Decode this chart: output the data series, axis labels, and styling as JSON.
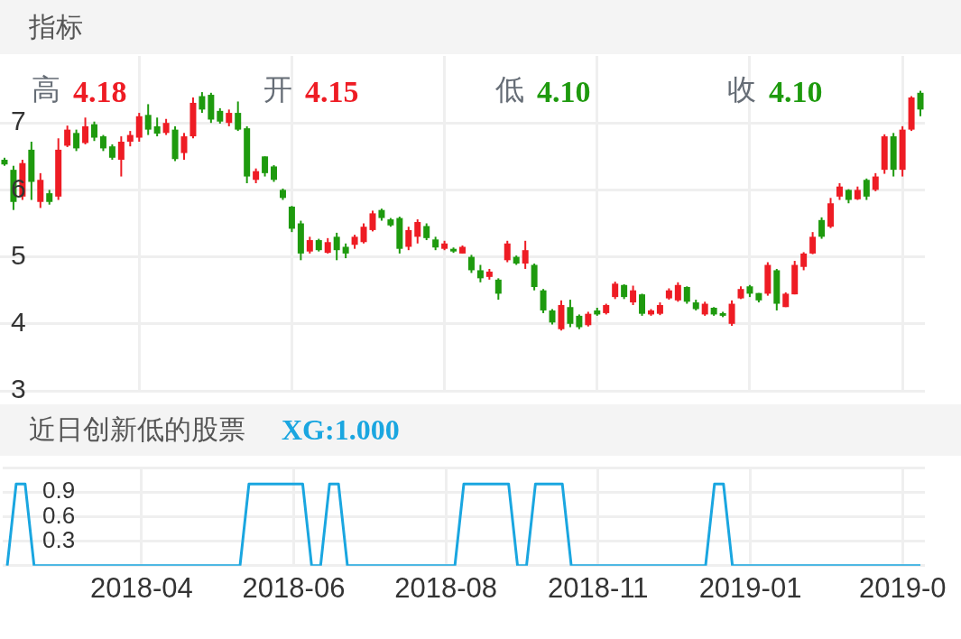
{
  "chart_data": [
    {
      "type": "candlestick",
      "title": "指标",
      "annotations": [
        "高 4.18",
        "开 4.15",
        "低 4.10",
        "收 4.10"
      ],
      "categories": [
        null,
        null,
        null,
        null,
        null,
        null,
        null,
        null,
        null,
        null,
        null,
        null,
        null,
        null,
        null,
        "2018-04",
        null,
        null,
        null,
        null,
        null,
        null,
        null,
        null,
        null,
        null,
        null,
        null,
        null,
        null,
        null,
        null,
        "2018-06",
        null,
        null,
        null,
        null,
        null,
        null,
        null,
        null,
        null,
        null,
        null,
        null,
        null,
        null,
        null,
        null,
        "2018-08",
        null,
        null,
        null,
        null,
        null,
        null,
        null,
        null,
        null,
        null,
        null,
        null,
        null,
        null,
        null,
        null,
        "2018-11",
        null,
        null,
        null,
        null,
        null,
        null,
        null,
        null,
        null,
        null,
        null,
        null,
        null,
        null,
        null,
        null,
        "2019-01",
        null,
        null,
        null,
        null,
        null,
        null,
        null,
        null,
        null,
        null,
        null,
        null,
        null,
        null,
        null,
        null,
        "2019-0",
        null,
        null
      ],
      "ohlc": [
        [
          6.45,
          6.48,
          6.36,
          6.38
        ],
        [
          6.3,
          6.36,
          5.7,
          5.82
        ],
        [
          5.9,
          6.45,
          5.85,
          6.4
        ],
        [
          6.6,
          6.72,
          5.85,
          6.12
        ],
        [
          5.82,
          6.25,
          5.73,
          6.15
        ],
        [
          5.95,
          6.0,
          5.78,
          5.82
        ],
        [
          5.9,
          6.77,
          5.85,
          6.6
        ],
        [
          6.66,
          6.96,
          6.64,
          6.9
        ],
        [
          6.85,
          6.9,
          6.58,
          6.62
        ],
        [
          6.7,
          7.08,
          6.68,
          6.95
        ],
        [
          6.98,
          7.02,
          6.73,
          6.78
        ],
        [
          6.8,
          6.82,
          6.58,
          6.62
        ],
        [
          6.65,
          6.68,
          6.45,
          6.48
        ],
        [
          6.45,
          6.8,
          6.2,
          6.72
        ],
        [
          6.72,
          6.88,
          6.65,
          6.82
        ],
        [
          6.78,
          7.15,
          6.72,
          7.1
        ],
        [
          7.12,
          7.28,
          6.82,
          6.9
        ],
        [
          6.95,
          7.08,
          6.8,
          6.84
        ],
        [
          6.85,
          7.06,
          6.82,
          7.0
        ],
        [
          6.9,
          6.95,
          6.43,
          6.46
        ],
        [
          6.55,
          6.85,
          6.45,
          6.8
        ],
        [
          6.8,
          7.38,
          6.77,
          7.3
        ],
        [
          7.4,
          7.46,
          7.15,
          7.2
        ],
        [
          7.42,
          7.45,
          7.0,
          7.05
        ],
        [
          7.18,
          7.22,
          6.99,
          7.02
        ],
        [
          7.0,
          7.2,
          6.95,
          7.15
        ],
        [
          7.15,
          7.32,
          6.88,
          6.9
        ],
        [
          6.92,
          6.95,
          6.1,
          6.2
        ],
        [
          6.15,
          6.32,
          6.1,
          6.28
        ],
        [
          6.5,
          6.5,
          6.2,
          6.25
        ],
        [
          6.35,
          6.37,
          6.12,
          6.15
        ],
        [
          6.0,
          6.02,
          5.85,
          5.88
        ],
        [
          5.75,
          5.76,
          5.37,
          5.42
        ],
        [
          5.5,
          5.54,
          4.95,
          5.05
        ],
        [
          5.08,
          5.3,
          5.05,
          5.25
        ],
        [
          5.25,
          5.27,
          5.08,
          5.1
        ],
        [
          5.06,
          5.28,
          5.05,
          5.22
        ],
        [
          5.3,
          5.36,
          4.95,
          5.1
        ],
        [
          5.15,
          5.2,
          4.98,
          5.05
        ],
        [
          5.18,
          5.33,
          5.12,
          5.3
        ],
        [
          5.22,
          5.5,
          5.2,
          5.45
        ],
        [
          5.4,
          5.69,
          5.38,
          5.65
        ],
        [
          5.7,
          5.72,
          5.54,
          5.58
        ],
        [
          5.56,
          5.58,
          5.45,
          5.47
        ],
        [
          5.58,
          5.6,
          5.05,
          5.12
        ],
        [
          5.15,
          5.45,
          5.1,
          5.4
        ],
        [
          5.3,
          5.56,
          5.2,
          5.52
        ],
        [
          5.46,
          5.5,
          5.25,
          5.28
        ],
        [
          5.26,
          5.3,
          5.1,
          5.14
        ],
        [
          5.12,
          5.24,
          5.1,
          5.2
        ],
        [
          5.12,
          5.14,
          5.06,
          5.08
        ],
        [
          5.05,
          5.17,
          5.05,
          5.15
        ],
        [
          5.0,
          5.03,
          4.76,
          4.8
        ],
        [
          4.8,
          4.88,
          4.62,
          4.68
        ],
        [
          4.7,
          4.82,
          4.66,
          4.78
        ],
        [
          4.66,
          4.68,
          4.36,
          4.45
        ],
        [
          4.95,
          5.24,
          4.92,
          5.2
        ],
        [
          5.0,
          5.02,
          4.88,
          4.9
        ],
        [
          4.9,
          5.24,
          4.82,
          5.1
        ],
        [
          4.88,
          4.9,
          4.5,
          4.55
        ],
        [
          4.5,
          4.52,
          4.16,
          4.2
        ],
        [
          4.2,
          4.22,
          3.99,
          4.02
        ],
        [
          3.92,
          4.35,
          3.9,
          4.28
        ],
        [
          4.25,
          4.36,
          3.95,
          4.0
        ],
        [
          4.12,
          4.14,
          3.92,
          3.95
        ],
        [
          3.98,
          4.18,
          3.96,
          4.15
        ],
        [
          4.2,
          4.24,
          4.12,
          4.14
        ],
        [
          4.16,
          4.3,
          4.14,
          4.28
        ],
        [
          4.4,
          4.63,
          4.37,
          4.6
        ],
        [
          4.58,
          4.59,
          4.37,
          4.4
        ],
        [
          4.32,
          4.57,
          4.28,
          4.5
        ],
        [
          4.44,
          4.45,
          4.12,
          4.15
        ],
        [
          4.14,
          4.22,
          4.12,
          4.2
        ],
        [
          4.15,
          4.32,
          4.13,
          4.28
        ],
        [
          4.38,
          4.53,
          4.36,
          4.5
        ],
        [
          4.35,
          4.62,
          4.33,
          4.58
        ],
        [
          4.55,
          4.56,
          4.3,
          4.33
        ],
        [
          4.32,
          4.36,
          4.2,
          4.22
        ],
        [
          4.14,
          4.33,
          4.12,
          4.3
        ],
        [
          4.24,
          4.25,
          4.12,
          4.14
        ],
        [
          4.16,
          4.18,
          4.1,
          4.12
        ],
        [
          4.0,
          4.35,
          3.97,
          4.3
        ],
        [
          4.38,
          4.56,
          4.37,
          4.52
        ],
        [
          4.56,
          4.58,
          4.4,
          4.45
        ],
        [
          4.46,
          4.46,
          4.32,
          4.35
        ],
        [
          4.45,
          4.92,
          4.42,
          4.88
        ],
        [
          4.8,
          4.82,
          4.2,
          4.3
        ],
        [
          4.25,
          4.47,
          4.25,
          4.45
        ],
        [
          4.44,
          4.94,
          4.44,
          4.88
        ],
        [
          4.85,
          5.07,
          4.8,
          5.05
        ],
        [
          5.05,
          5.37,
          5.04,
          5.3
        ],
        [
          5.55,
          5.59,
          5.27,
          5.3
        ],
        [
          5.45,
          5.88,
          5.43,
          5.8
        ],
        [
          5.9,
          6.1,
          5.85,
          6.05
        ],
        [
          6.0,
          6.01,
          5.8,
          5.85
        ],
        [
          5.86,
          6.05,
          5.85,
          6.0
        ],
        [
          6.15,
          6.17,
          5.85,
          5.9
        ],
        [
          6.0,
          6.25,
          5.98,
          6.2
        ],
        [
          6.3,
          6.83,
          6.24,
          6.8
        ],
        [
          6.8,
          6.85,
          6.2,
          6.3
        ],
        [
          6.3,
          6.95,
          6.2,
          6.9
        ],
        [
          6.9,
          7.4,
          6.88,
          7.38
        ],
        [
          7.45,
          7.48,
          7.1,
          7.2
        ]
      ],
      "ylim": [
        3,
        8
      ],
      "yticks": [
        3,
        4,
        5,
        6,
        7
      ],
      "grid": true,
      "tick_labels": "y"
    },
    {
      "type": "line",
      "title": "近日创新低的股票",
      "legend": "top left",
      "marker": "none",
      "categories": [
        null,
        null,
        null,
        null,
        null,
        null,
        null,
        null,
        null,
        null,
        null,
        null,
        null,
        null,
        null,
        "2018-04",
        null,
        null,
        null,
        null,
        null,
        null,
        null,
        null,
        null,
        null,
        null,
        null,
        null,
        null,
        null,
        null,
        "2018-06",
        null,
        null,
        null,
        null,
        null,
        null,
        null,
        null,
        null,
        null,
        null,
        null,
        null,
        null,
        null,
        null,
        "2018-08",
        null,
        null,
        null,
        null,
        null,
        null,
        null,
        null,
        null,
        null,
        null,
        null,
        null,
        null,
        null,
        null,
        "2018-11",
        null,
        null,
        null,
        null,
        null,
        null,
        null,
        null,
        null,
        null,
        null,
        null,
        null,
        null,
        null,
        null,
        "2019-01",
        null,
        null,
        null,
        null,
        null,
        null,
        null,
        null,
        null,
        null,
        null,
        null,
        null,
        null,
        null,
        null,
        "2019-0",
        null,
        null
      ],
      "series": [
        {
          "name": "XG:1.000",
          "color": "#1aa6e0",
          "values": [
            0,
            1,
            1,
            0,
            0,
            0,
            0,
            0,
            0,
            0,
            0,
            0,
            0,
            0,
            0,
            0,
            0,
            0,
            0,
            0,
            0,
            0,
            0,
            0,
            0,
            0,
            0,
            1,
            1,
            1,
            1,
            1,
            1,
            1,
            0,
            0,
            1,
            1,
            0,
            0,
            0,
            0,
            0,
            0,
            0,
            0,
            0,
            0,
            0,
            0,
            0,
            1,
            1,
            1,
            1,
            1,
            1,
            0,
            0,
            1,
            1,
            1,
            1,
            0,
            0,
            0,
            0,
            0,
            0,
            0,
            0,
            0,
            0,
            0,
            0,
            0,
            0,
            0,
            0,
            1,
            1,
            0,
            0,
            0,
            0,
            0,
            0,
            0,
            0,
            0,
            0,
            0,
            0,
            0,
            0,
            0,
            0,
            0,
            0,
            0,
            0,
            0,
            0
          ]
        }
      ],
      "ylim": [
        0,
        1.2
      ],
      "yticks": [
        {
          "value": 0,
          "label": null
        },
        0.3,
        0.6,
        0.9,
        {
          "value": 1.2,
          "label": null
        }
      ],
      "grid": true
    }
  ]
}
